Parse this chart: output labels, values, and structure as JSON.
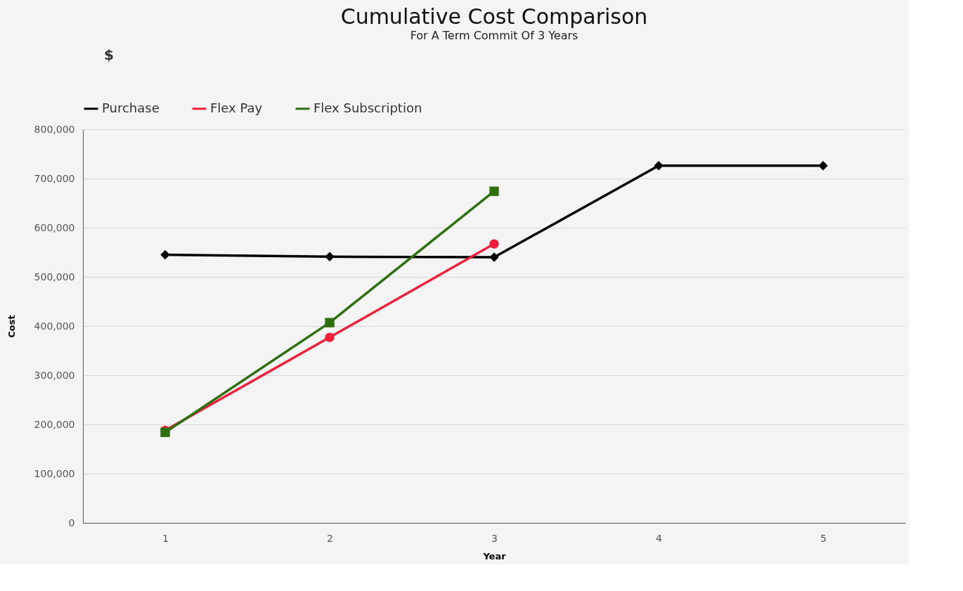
{
  "chart_data": {
    "type": "line",
    "title": "Cumulative Cost Comparison",
    "subtitle": "For A Term Commit Of 3 Years",
    "xlabel": "Year",
    "ylabel": "Cost",
    "annotations": [
      "$"
    ],
    "categories": [
      "1",
      "2",
      "3",
      "4",
      "5"
    ],
    "series": [
      {
        "name": "Purchase",
        "color": "#000000",
        "marker": "diamond",
        "values": [
          545000,
          541000,
          540000,
          726000,
          726000
        ]
      },
      {
        "name": "Flex Pay",
        "color": "#f0203c",
        "marker": "circle",
        "values": [
          188000,
          377000,
          567000,
          null,
          null
        ]
      },
      {
        "name": "Flex Subscription",
        "color": "#2e7010",
        "marker": "square",
        "values": [
          184000,
          407000,
          674000,
          null,
          null
        ]
      }
    ],
    "ylim": [
      0,
      800000
    ],
    "yticks": [
      0,
      {
        "value": 100000,
        "label": "100,000"
      },
      {
        "value": 200000,
        "label": "200,000"
      },
      {
        "value": 300000,
        "label": "300,000"
      },
      {
        "value": 400000,
        "label": "400,000"
      },
      {
        "value": 500000,
        "label": "500,000"
      },
      {
        "value": 600000,
        "label": "600,000"
      },
      {
        "value": 700000,
        "label": "700,000"
      },
      {
        "value": 800000,
        "label": "800,000"
      }
    ],
    "grid": "y",
    "legend": "top",
    "line_style": "solid"
  }
}
